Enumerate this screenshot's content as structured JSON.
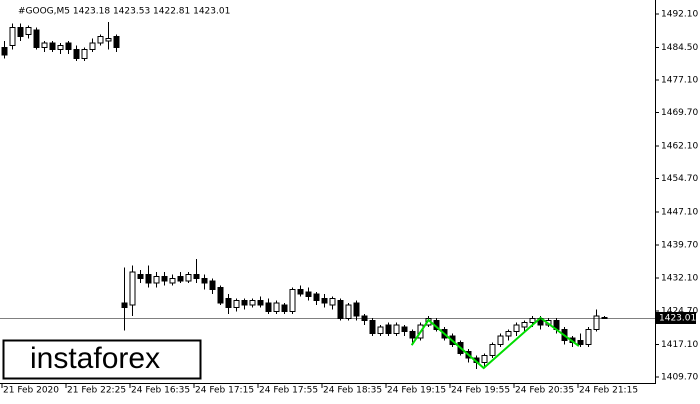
{
  "chart_data": {
    "type": "candlestick",
    "title": "#GOOG,M5  1423.18 1423.53 1422.81 1423.01",
    "categories": [
      "21 Feb 2020",
      null,
      null,
      null,
      null,
      null,
      null,
      null,
      "21 Feb 22:25",
      null,
      null,
      null,
      null,
      null,
      null,
      null,
      "24 Feb 16:35",
      null,
      null,
      null,
      null,
      null,
      null,
      null,
      "24 Feb 17:15",
      null,
      null,
      null,
      null,
      null,
      null,
      null,
      "24 Feb 17:55",
      null,
      null,
      null,
      null,
      null,
      null,
      null,
      "24 Feb 18:35",
      null,
      null,
      null,
      null,
      null,
      null,
      null,
      "24 Feb 19:15",
      null,
      null,
      null,
      null,
      null,
      null,
      null,
      "24 Feb 19:55",
      null,
      null,
      null,
      null,
      null,
      null,
      null,
      "24 Feb 20:35",
      null,
      null,
      null,
      null,
      null,
      null,
      null,
      "24 Feb 21:15",
      null,
      null,
      null
    ],
    "open": [
      1484.5,
      1485,
      1489,
      1487.5,
      1488.5,
      1484.5,
      1485.5,
      1484,
      1485.5,
      1484,
      1482,
      1484,
      1485.5,
      1486,
      1487,
      1426.5,
      1426,
      1433,
      1433,
      1431,
      1432.5,
      1431,
      1432.5,
      1431.5,
      1433,
      1432,
      1431.5,
      1430,
      1427.5,
      1425.5,
      1427,
      1426,
      1427,
      1426.5,
      1424.5,
      1426,
      1424.5,
      1429.5,
      1429,
      1428.5,
      1427.5,
      1426,
      1427,
      1423,
      1426.5,
      1423.5,
      1422.5,
      1419.5,
      1421.5,
      1419.5,
      1421,
      1420,
      1418.5,
      1421.5,
      1422.5,
      1420.5,
      1419,
      1417.5,
      1415.5,
      1414,
      1413,
      1414.5,
      1417,
      1419,
      1420,
      1421,
      1422,
      1423,
      1421.5,
      1422.5,
      1420.5,
      1418.5,
      1418,
      1417,
      1420.5,
      1423.18
    ],
    "high": [
      1486,
      1490,
      1490,
      1489.5,
      1489,
      1486,
      1486,
      1485.5,
      1486,
      1485,
      1484.5,
      1486.5,
      1487.5,
      1490.3,
      1487.5,
      1434.5,
      1435,
      1434,
      1435,
      1433.5,
      1433.5,
      1433,
      1433.5,
      1433.5,
      1436.5,
      1433,
      1432,
      1430.5,
      1428.5,
      1427.5,
      1427.5,
      1427.5,
      1428,
      1427.5,
      1427,
      1426.5,
      1430,
      1430.5,
      1430,
      1429,
      1428.5,
      1428,
      1427.5,
      1426.5,
      1427,
      1424,
      1423,
      1421.5,
      1422,
      1422,
      1421.5,
      1420.5,
      1422,
      1423.5,
      1423,
      1421,
      1419.5,
      1418,
      1416,
      1414.5,
      1415,
      1417.5,
      1419.5,
      1420.5,
      1422,
      1422.5,
      1423.5,
      1423.5,
      1423,
      1423,
      1421,
      1419,
      1419.5,
      1421,
      1425,
      1423.53
    ],
    "low": [
      1482,
      1484,
      1486,
      1486.5,
      1484,
      1483.5,
      1483.5,
      1483,
      1483,
      1481.5,
      1481.5,
      1483.5,
      1485,
      1484,
      1483.5,
      1420.2,
      1423.5,
      1431,
      1430,
      1430,
      1430.5,
      1430.5,
      1431,
      1431,
      1431,
      1429.5,
      1428.5,
      1426,
      1424,
      1424.5,
      1425,
      1425.5,
      1425.5,
      1424,
      1424,
      1424,
      1424,
      1428,
      1427,
      1426,
      1425.5,
      1425,
      1422.5,
      1422.5,
      1422.5,
      1421.5,
      1419,
      1419,
      1419,
      1419,
      1419,
      1417.5,
      1418,
      1421,
      1420,
      1418,
      1416.5,
      1414.5,
      1413,
      1411.5,
      1412,
      1414,
      1416.5,
      1418,
      1419,
      1420,
      1421,
      1420.5,
      1421,
      1419.5,
      1417,
      1416.5,
      1416.5,
      1416.5,
      1420,
      1422.81
    ],
    "close": [
      1482.8,
      1489,
      1487,
      1489,
      1484.5,
      1485.5,
      1484,
      1485,
      1484,
      1482,
      1484,
      1485.5,
      1487,
      1486.5,
      1484.5,
      1425.5,
      1433.5,
      1432,
      1431,
      1432.5,
      1431.5,
      1432,
      1431.5,
      1433,
      1432,
      1431,
      1429.5,
      1426.5,
      1425.5,
      1427,
      1426,
      1427,
      1426,
      1424.5,
      1426.5,
      1424.5,
      1429.5,
      1428.5,
      1428,
      1427,
      1426.5,
      1427.5,
      1423,
      1426,
      1423.5,
      1422.5,
      1419.5,
      1421,
      1419.5,
      1421.5,
      1420,
      1418.5,
      1421.5,
      1423,
      1420.5,
      1418.5,
      1417,
      1415,
      1414,
      1413,
      1414.5,
      1417,
      1419,
      1420,
      1421.5,
      1422,
      1423,
      1421.5,
      1422.5,
      1420.5,
      1418,
      1417.5,
      1417,
      1420.5,
      1423.5,
      1423.01
    ],
    "ylim": [
      1408.3,
      1495.3
    ],
    "yticks": [
      {
        "value": 1492.1,
        "label": "1492.10"
      },
      {
        "value": 1484.5,
        "label": "1484.50"
      },
      {
        "value": 1477.1,
        "label": "1477.10"
      },
      {
        "value": 1469.7,
        "label": "1469.70"
      },
      {
        "value": 1462.1,
        "label": "1462.10"
      },
      {
        "value": 1454.7,
        "label": "1454.70"
      },
      {
        "value": 1447.1,
        "label": "1447.10"
      },
      {
        "value": 1439.7,
        "label": "1439.70"
      },
      {
        "value": 1432.1,
        "label": "1432.10"
      },
      {
        "value": 1424.7,
        "label": "1424.70"
      },
      {
        "value": 1417.1,
        "label": "1417.10"
      },
      {
        "value": 1409.7,
        "label": "1409.70"
      }
    ],
    "last_price": 1423.01,
    "pattern": {
      "color": "#00dd00",
      "x": [
        50.9,
        53,
        59.9,
        67,
        71.8
      ],
      "y": [
        1416.9,
        1422.6,
        1411.7,
        1423.1,
        1416.7
      ]
    }
  },
  "watermark": "instaforex"
}
